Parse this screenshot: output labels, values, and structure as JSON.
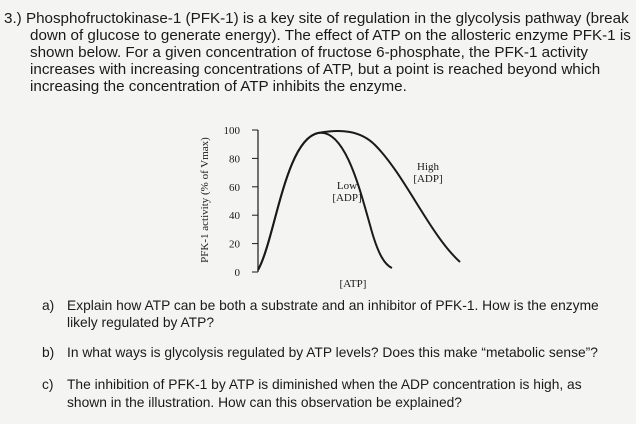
{
  "question": {
    "lines": [
      "3.) Phosphofructokinase-1 (PFK-1) is a key site of regulation in the glycolysis pathway (break",
      "down of glucose to generate energy).  The effect of ATP on the allosteric enzyme PFK-1 is",
      "shown below. For a given concentration of fructose 6-phosphate, the PFK-1 activity",
      "increases with increasing concentrations of ATP, but a point is reached beyond which",
      "increasing the concentration of ATP inhibits the enzyme."
    ]
  },
  "chart_data": {
    "type": "line",
    "ylabel": "PFK-1 activity (% of Vmax)",
    "xlabel": "[ATP]",
    "ylim": [
      0,
      100
    ],
    "yticks": [
      0,
      20,
      40,
      60,
      80,
      100
    ],
    "curve_labels": [
      [
        "Low",
        "[ADP]"
      ],
      [
        "High",
        "[ADP]"
      ]
    ]
  },
  "parts": [
    {
      "label": "a)",
      "lines": [
        "Explain how ATP can be both a substrate and an inhibitor of PFK-1. How is the enzyme",
        "likely regulated by ATP?"
      ]
    },
    {
      "label": "b)",
      "lines": [
        "In what ways is glycolysis regulated by ATP levels?  Does this make “metabolic sense”?"
      ]
    },
    {
      "label": "c)",
      "lines": [
        "The inhibition of PFK-1 by ATP is diminished when the ADP concentration is high, as",
        "shown in  the illustration. How can this observation be explained?"
      ]
    }
  ]
}
